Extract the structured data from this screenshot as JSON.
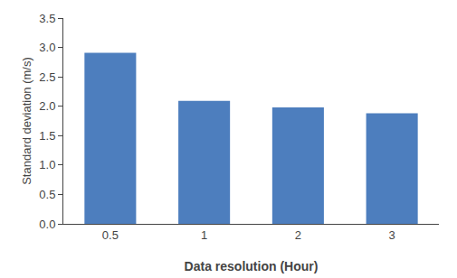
{
  "chart_data": {
    "type": "bar",
    "categories": [
      "0.5",
      "1",
      "2",
      "3"
    ],
    "values": [
      2.91,
      2.09,
      1.98,
      1.88
    ],
    "color": "#4d7ebe",
    "xlabel": "Data resolution (Hour)",
    "ylabel": "Standard deviation (m/s)",
    "ylim": [
      0,
      3.5
    ],
    "yticks": [
      {
        "value": 0,
        "label": "0.0"
      },
      0.5,
      {
        "value": 1,
        "label": "1.0"
      },
      1.5,
      {
        "value": 2,
        "label": "2.0"
      },
      2.5,
      {
        "value": 3,
        "label": "3.0"
      },
      3.5
    ],
    "grid": false
  }
}
